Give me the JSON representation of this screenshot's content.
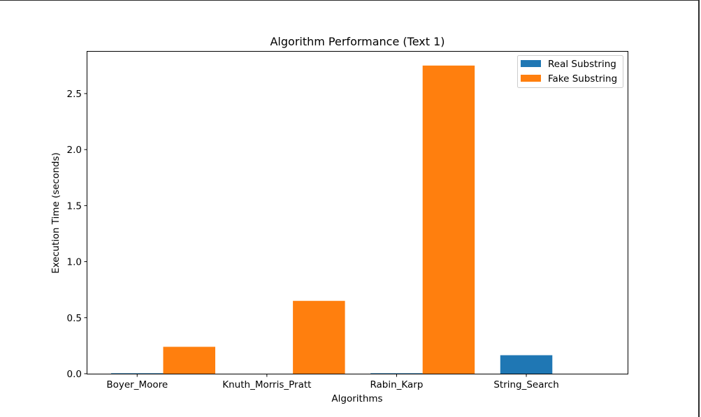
{
  "chart_data": {
    "type": "bar",
    "title": "Algorithm Performance (Text 1)",
    "xlabel": "Algorithms",
    "ylabel": "Execution Time (seconds)",
    "categories": [
      "Boyer_Moore",
      "Knuth_Morris_Pratt",
      "Rabin_Karp",
      "String_Search"
    ],
    "series": [
      {
        "name": "Real Substring",
        "color": "#1f77b4",
        "values": [
          0.004,
          0.0,
          0.004,
          0.165
        ]
      },
      {
        "name": "Fake Substring",
        "color": "#ff7f0e",
        "values": [
          0.24,
          0.65,
          2.75,
          0.0
        ]
      }
    ],
    "ylim": [
      0,
      2.88
    ],
    "yticks": [
      "0.0",
      "0.5",
      "1.0",
      "1.5",
      "2.0",
      "2.5"
    ],
    "ytick_values": [
      0,
      0.5,
      1.0,
      1.5,
      2.0,
      2.5
    ],
    "legend_position": "top-right",
    "grid": false
  }
}
